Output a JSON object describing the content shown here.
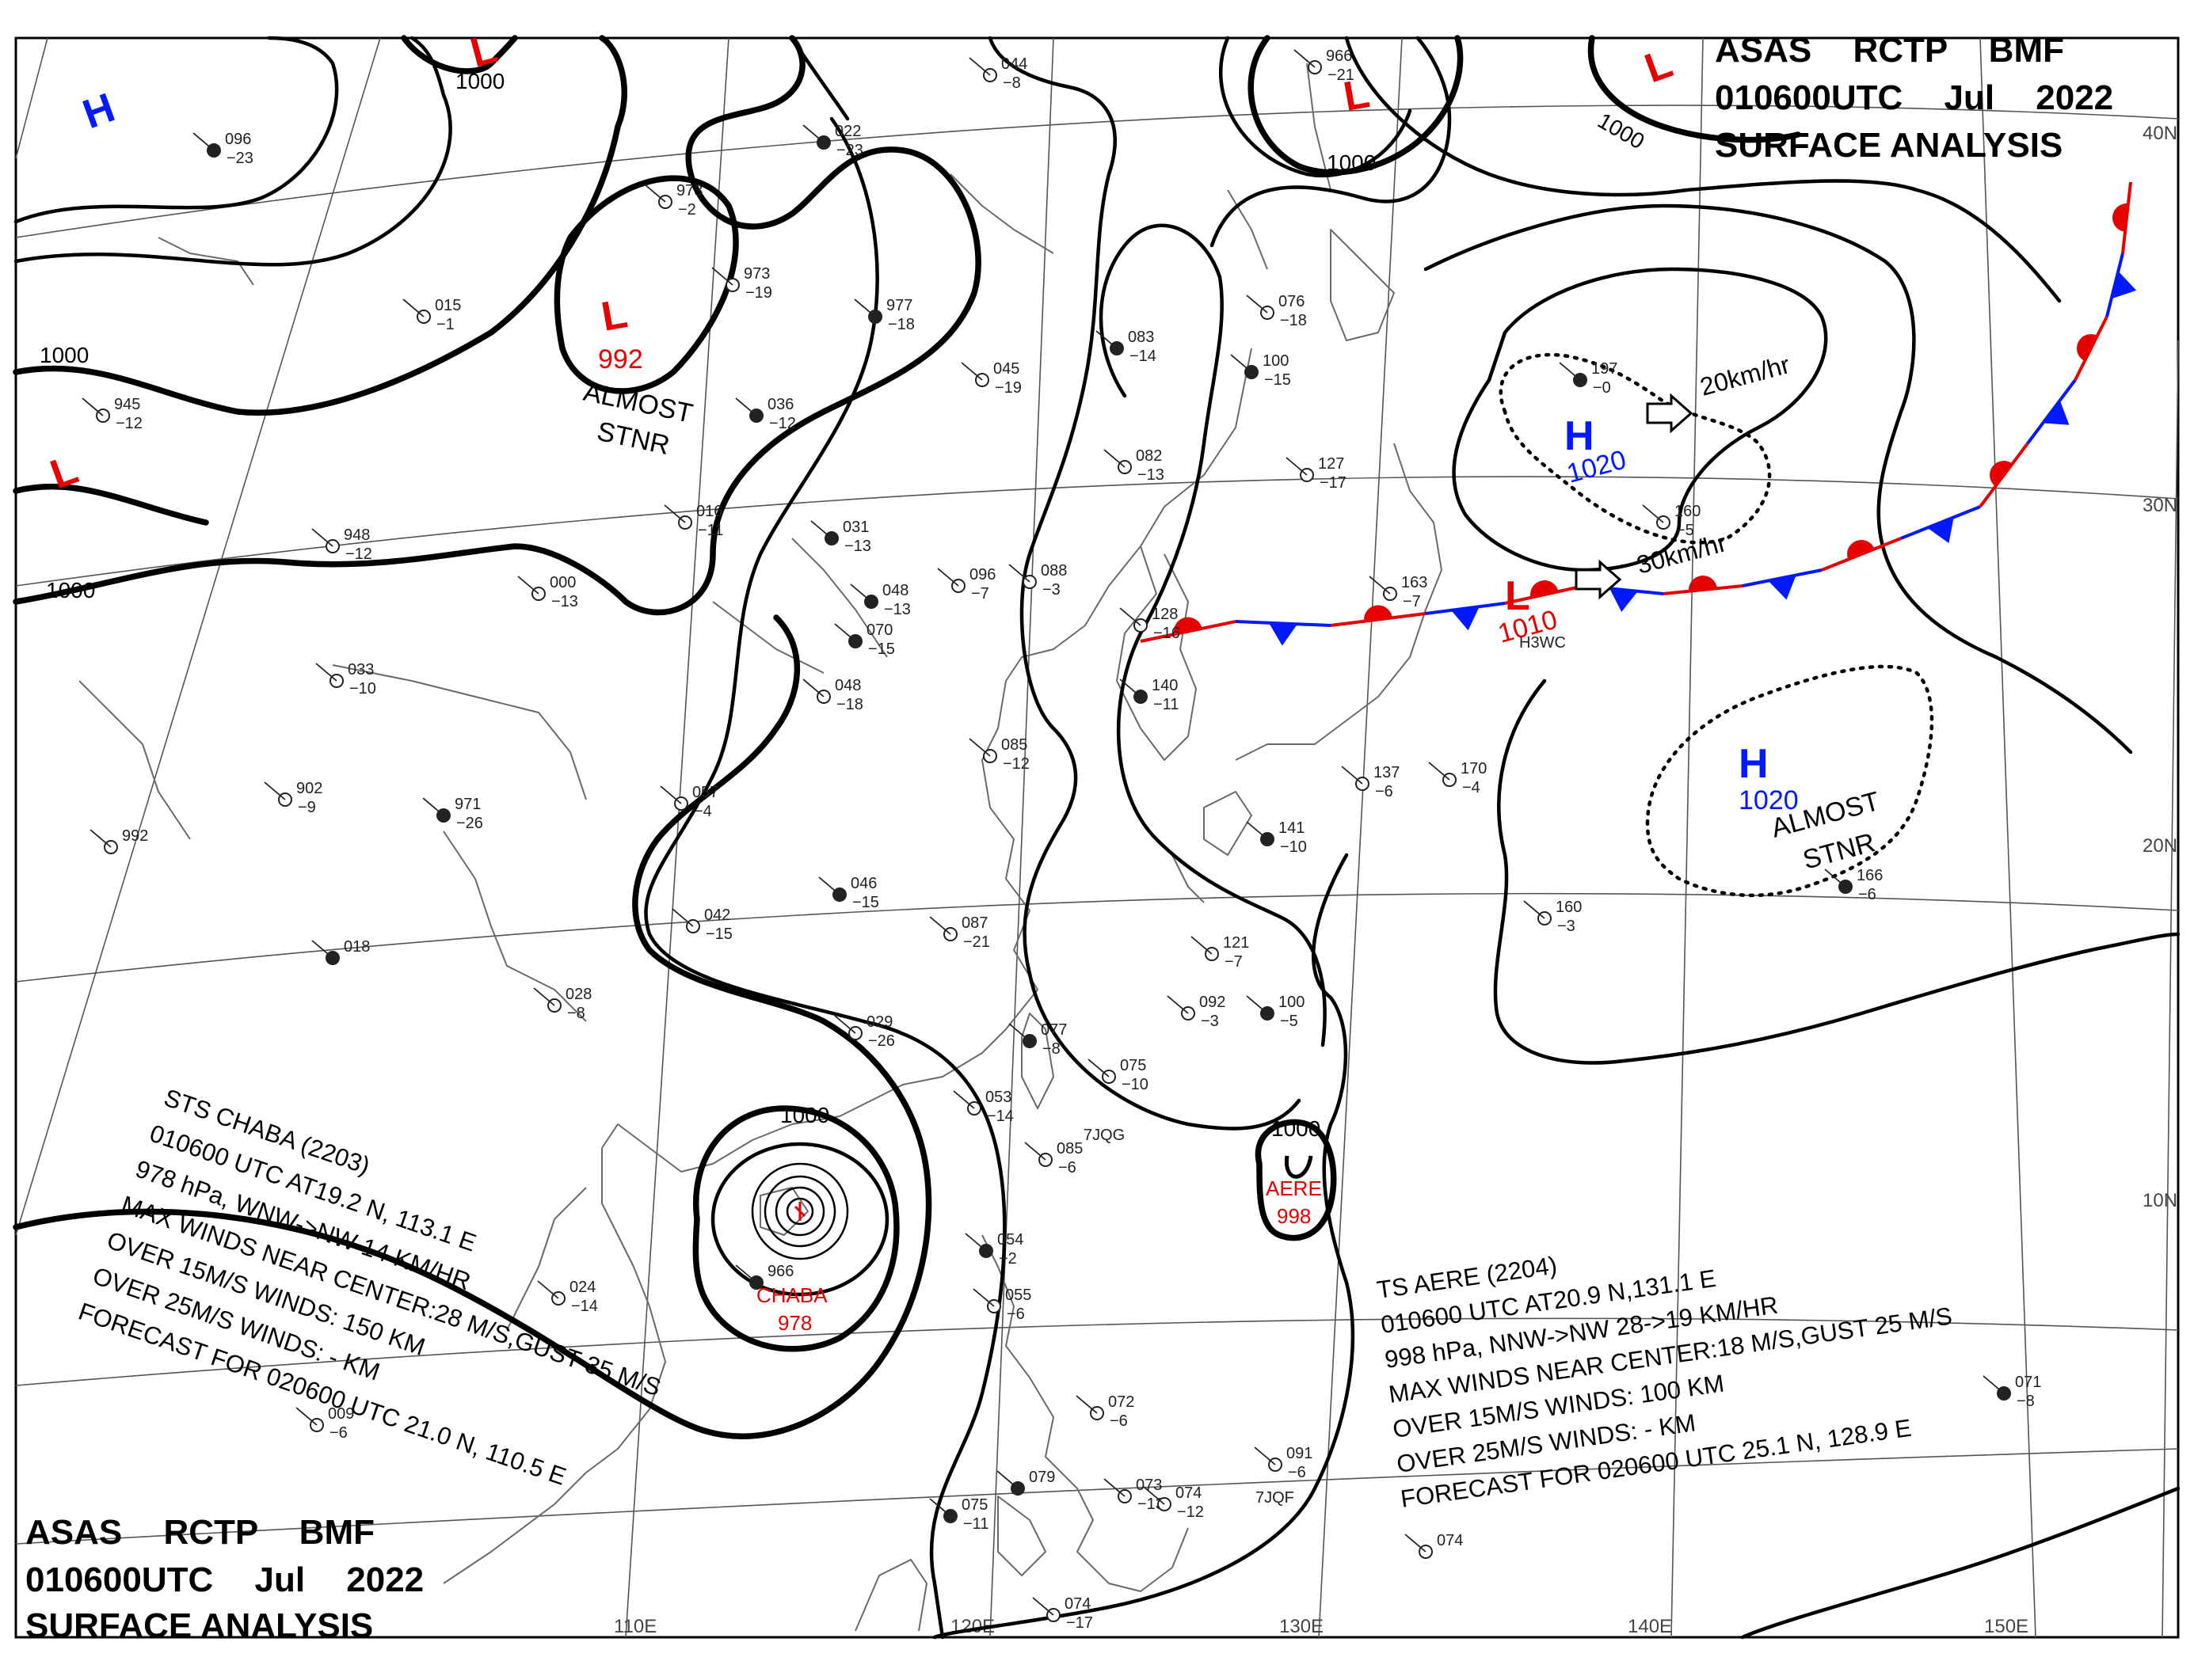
{
  "header_top": {
    "line1": "ASAS RCTP BMF",
    "line2": "010600UTC Jul 2022",
    "line3": "SURFACE ANALYSIS"
  },
  "header_bottom": {
    "line1": "ASAS RCTP BMF",
    "line2": "010600UTC Jul 2022",
    "line3": "SURFACE ANALYSIS"
  },
  "colors": {
    "high": "#0019ff",
    "low": "#e60000",
    "isobar": "#000000",
    "coast": "#6a6a6a",
    "grid": "#555555"
  },
  "graticule_labels": {
    "lon": [
      "110E",
      "120E",
      "130E",
      "140E",
      "150E"
    ],
    "lat": [
      "40N",
      "30N",
      "20N",
      "10N"
    ]
  },
  "isobar_labels": [
    "1000",
    "1000",
    "1000",
    "1000",
    "1000",
    "1000",
    "1000"
  ],
  "pressure_centers": [
    {
      "type": "H",
      "value": ""
    },
    {
      "type": "L",
      "value": ""
    },
    {
      "type": "L",
      "value": ""
    },
    {
      "type": "L",
      "value": ""
    },
    {
      "type": "L",
      "value": ""
    },
    {
      "type": "L",
      "value": "992"
    },
    {
      "type": "H",
      "value": "1020"
    },
    {
      "type": "L",
      "value": "1010"
    },
    {
      "type": "H",
      "value": "1020"
    }
  ],
  "annotations": {
    "almost_stnr_1": [
      "ALMOST",
      "STNR"
    ],
    "almost_stnr_2": [
      "ALMOST",
      "STNR"
    ],
    "speed_1": "20km/hr",
    "speed_2": "30km/hr",
    "chaba_name": "CHABA",
    "chaba_pres": "978",
    "aere_name": "AERE",
    "aere_pres": "998",
    "aere_iso": "1000",
    "chaba_iso": "1000"
  },
  "typhoon_chaba": {
    "lines": [
      "STS CHABA (2203)",
      "010600 UTC AT19.2 N, 113.1 E",
      "978 hPa, WNW->NW 14 KM/HR",
      "MAX WINDS NEAR CENTER:28 M/S,GUST 35 M/S",
      "OVER 15M/S WINDS: 150 KM",
      "OVER 25M/S WINDS: - KM",
      "FORECAST FOR 020600 UTC 21.0 N, 110.5 E"
    ]
  },
  "typhoon_aere": {
    "lines": [
      "TS AERE (2204)",
      "010600 UTC AT20.9 N,131.1 E",
      "998 hPa, NNW->NW 28->19 KM/HR",
      "MAX WINDS NEAR CENTER:18 M/S,GUST 25 M/S",
      "OVER 15M/S WINDS: 100 KM",
      "OVER 25M/S WINDS: - KM",
      "FORECAST FOR 020600 UTC 25.1 N, 128.9 E"
    ]
  },
  "stations": [
    {
      "t": "096",
      "s": "23"
    },
    {
      "t": "044",
      "s": "8"
    },
    {
      "t": "966",
      "s": "21"
    },
    {
      "t": "022",
      "s": "23"
    },
    {
      "t": "973",
      "s": "2"
    },
    {
      "t": "973",
      "s": "19"
    },
    {
      "t": "977",
      "s": "18"
    },
    {
      "t": "015",
      "s": "1"
    },
    {
      "t": "945",
      "s": "12"
    },
    {
      "t": "036",
      "s": "12"
    },
    {
      "t": "045",
      "s": "19"
    },
    {
      "t": "016",
      "s": "11"
    },
    {
      "t": "031",
      "s": "13"
    },
    {
      "t": "948",
      "s": "12"
    },
    {
      "t": "000",
      "s": "13"
    },
    {
      "t": "048",
      "s": "13"
    },
    {
      "t": "096",
      "s": "7"
    },
    {
      "t": "088",
      "s": "3"
    },
    {
      "t": "070",
      "s": "15"
    },
    {
      "t": "033",
      "s": "10"
    },
    {
      "t": "048",
      "s": "18"
    },
    {
      "t": "083",
      "s": "14"
    },
    {
      "t": "082",
      "s": "13"
    },
    {
      "t": "076",
      "s": "18"
    },
    {
      "t": "100",
      "s": "15"
    },
    {
      "t": "127",
      "s": "17"
    },
    {
      "t": "163",
      "s": "7"
    },
    {
      "t": "197",
      "s": "0"
    },
    {
      "t": "160",
      "s": "5"
    },
    {
      "t": "128",
      "s": "16"
    },
    {
      "t": "140",
      "s": "11"
    },
    {
      "t": "085",
      "s": "12"
    },
    {
      "t": "902",
      "s": "9"
    },
    {
      "t": "971",
      "s": "26"
    },
    {
      "t": "057",
      "s": "4"
    },
    {
      "t": "992",
      "s": ""
    },
    {
      "t": "046",
      "s": "15"
    },
    {
      "t": "042",
      "s": "15"
    },
    {
      "t": "087",
      "s": "21"
    },
    {
      "t": "018",
      "s": ""
    },
    {
      "t": "028",
      "s": "8"
    },
    {
      "t": "029",
      "s": "26"
    },
    {
      "t": "077",
      "s": "8"
    },
    {
      "t": "075",
      "s": "10"
    },
    {
      "t": "092",
      "s": "3"
    },
    {
      "t": "100",
      "s": "5"
    },
    {
      "t": "121",
      "s": "7"
    },
    {
      "t": "160",
      "s": "3"
    },
    {
      "t": "166",
      "s": "6"
    },
    {
      "t": "137",
      "s": "6"
    },
    {
      "t": "170",
      "s": "4"
    },
    {
      "t": "141",
      "s": "10"
    },
    {
      "t": "053",
      "s": "14"
    },
    {
      "t": "085",
      "s": "6"
    },
    {
      "t": "054",
      "s": "2"
    },
    {
      "t": "055",
      "s": "6"
    },
    {
      "t": "072",
      "s": "6"
    },
    {
      "t": "079",
      "s": ""
    },
    {
      "t": "073",
      "s": "13"
    },
    {
      "t": "074",
      "s": "12"
    },
    {
      "t": "075",
      "s": "11"
    },
    {
      "t": "074",
      "s": "17"
    },
    {
      "t": "091",
      "s": "6"
    },
    {
      "t": "071",
      "s": "8"
    },
    {
      "t": "074",
      "s": ""
    },
    {
      "t": "024",
      "s": "14"
    },
    {
      "t": "966",
      "s": ""
    },
    {
      "t": "009",
      "s": "6"
    }
  ],
  "station_codes": [
    "7JQG",
    "7JQF",
    "H3WC"
  ]
}
